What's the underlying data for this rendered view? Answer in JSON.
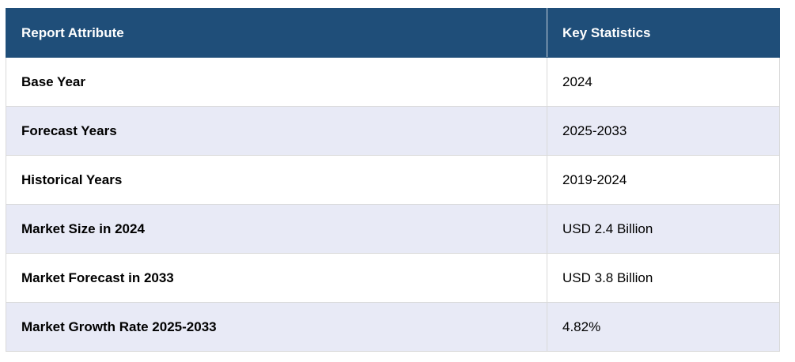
{
  "table": {
    "headers": {
      "attribute": "Report Attribute",
      "statistics": "Key Statistics"
    },
    "rows": [
      {
        "attribute": "Base Year",
        "value": "2024"
      },
      {
        "attribute": "Forecast Years",
        "value": "2025-2033"
      },
      {
        "attribute": "Historical Years",
        "value": "2019-2024"
      },
      {
        "attribute": "Market Size in 2024",
        "value": "USD 2.4 Billion"
      },
      {
        "attribute": "Market Forecast in 2033",
        "value": "USD 3.8 Billion"
      },
      {
        "attribute": "Market Growth Rate 2025-2033",
        "value": "4.82%"
      }
    ]
  },
  "colors": {
    "header_background": "#1f4e79",
    "header_text": "#ffffff",
    "row_alt_background": "#e8eaf6",
    "row_background": "#ffffff"
  }
}
